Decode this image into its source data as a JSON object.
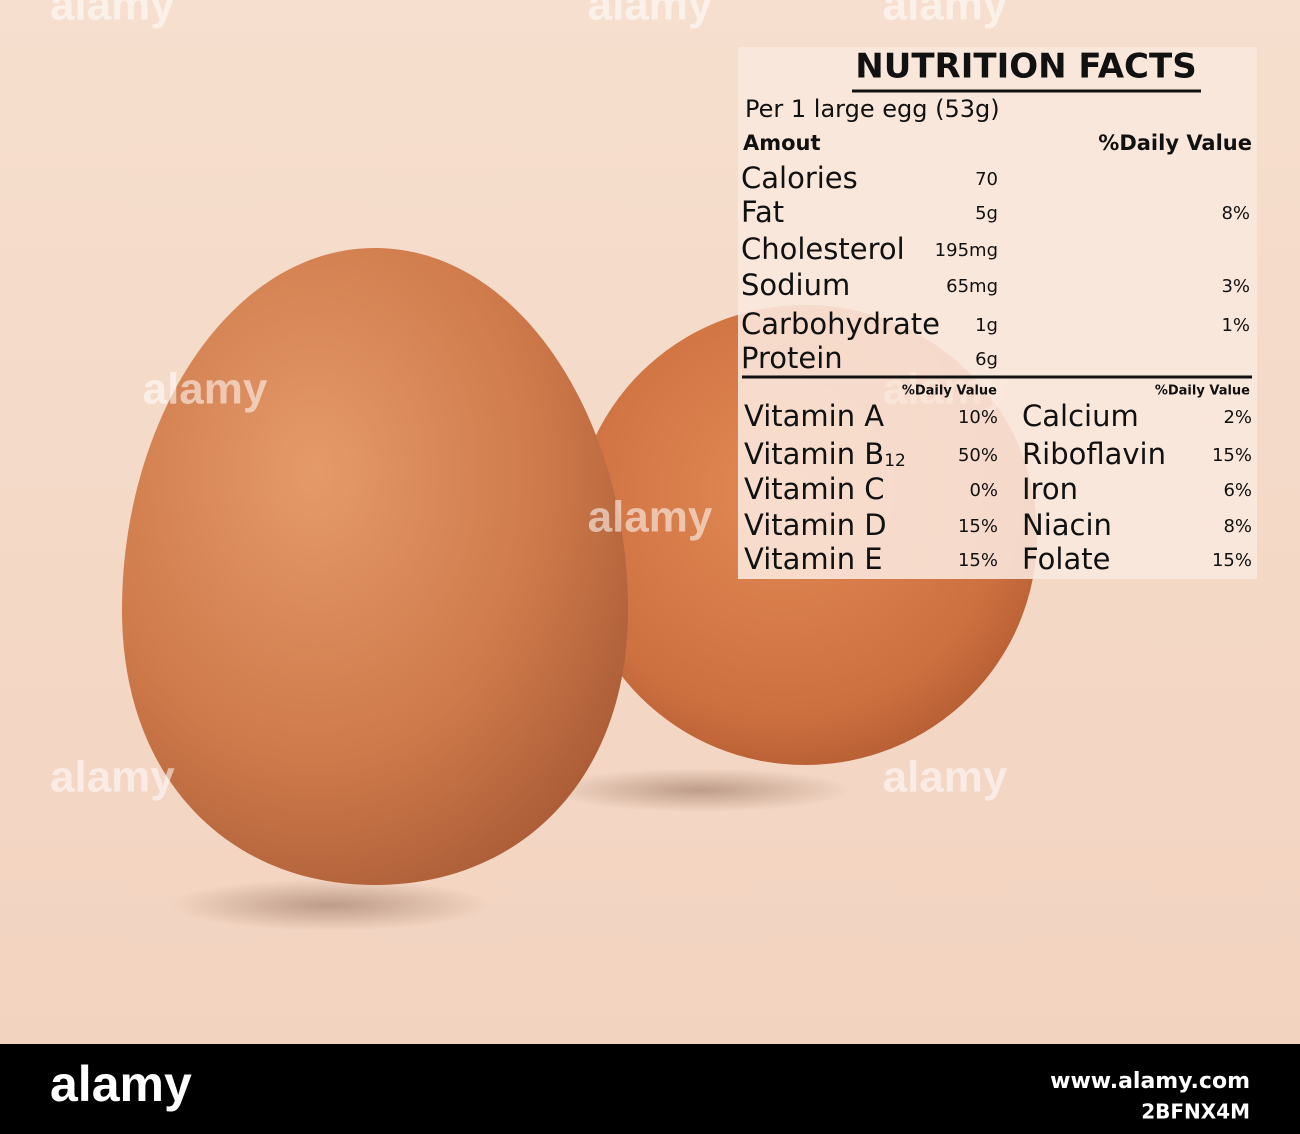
{
  "header": {
    "title": "NUTRITION FACTS",
    "serving": "Per 1 large egg (53g)",
    "amount_label": "Amout",
    "daily_label": "%Daily Value"
  },
  "nutrients": [
    {
      "name": "Calories",
      "amount": "70"
    },
    {
      "name": "Fat",
      "amount": "5g",
      "daily": "8%"
    },
    {
      "name": "Cholesterol",
      "amount": "195mg"
    },
    {
      "name": "Sodium",
      "amount": "65mg",
      "daily": "3%"
    },
    {
      "name": "Carbohydrate",
      "amount": "1g",
      "daily": "1%"
    },
    {
      "name": "Protein",
      "amount": "6g"
    }
  ],
  "vitamins": {
    "left_label": "%Daily Value",
    "right_label": "%Daily Value",
    "left": [
      {
        "name": "Vitamin A",
        "value": "10%"
      },
      {
        "name": "Vitamin B",
        "subscript": "12",
        "value": "50%"
      },
      {
        "name": "Vitamin C",
        "value": "0%"
      },
      {
        "name": "Vitamin D",
        "value": "15%"
      },
      {
        "name": "Vitamin E",
        "value": "15%"
      }
    ],
    "right": [
      {
        "name": "Calcium",
        "value": "2%"
      },
      {
        "name": "Riboflavin",
        "value": "15%"
      },
      {
        "name": "Iron",
        "value": "6%"
      },
      {
        "name": "Niacin",
        "value": "8%"
      },
      {
        "name": "Folate",
        "value": "15%"
      }
    ]
  },
  "watermark": "alamy",
  "footer": {
    "brand": "alamy",
    "url": "www.alamy.com",
    "id": "2BFNX4M"
  }
}
